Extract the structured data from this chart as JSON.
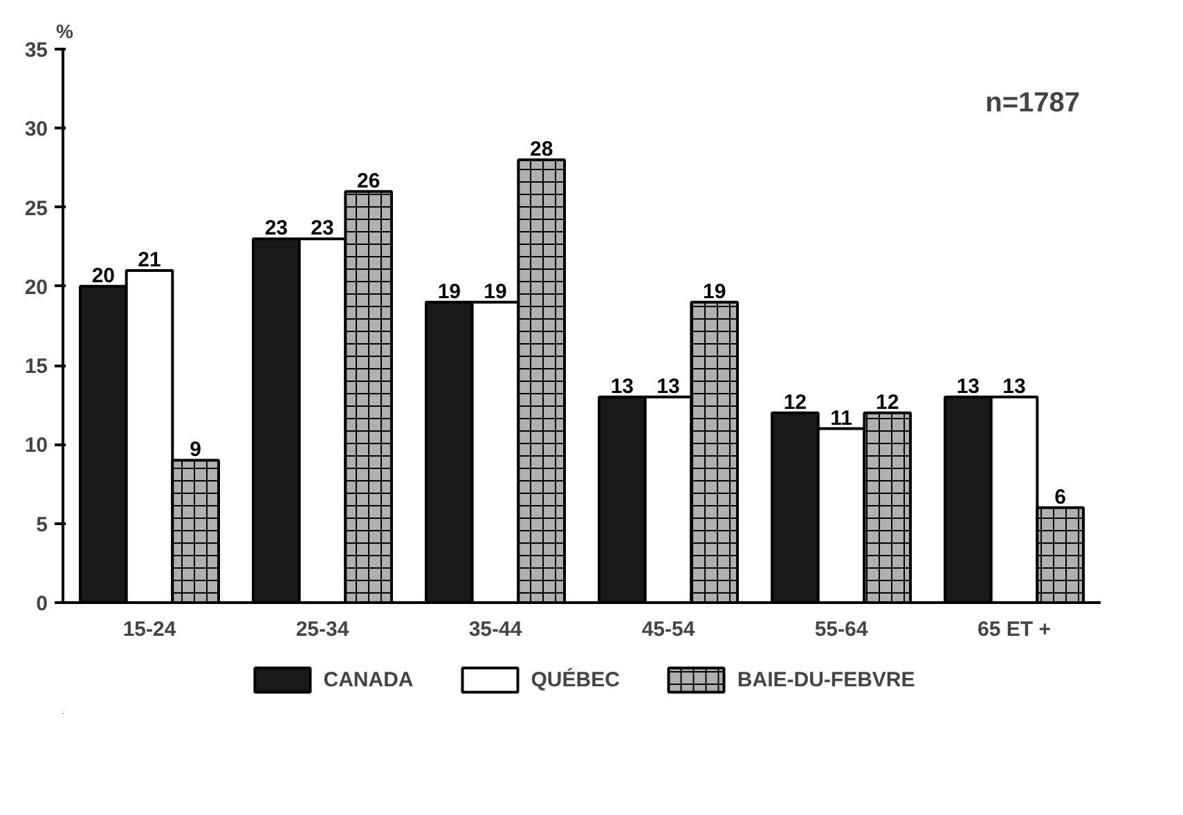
{
  "chart_data": {
    "type": "bar",
    "ylabel": "%",
    "categories": [
      "15-24",
      "25-34",
      "35-44",
      "45-54",
      "55-64",
      "65 ET +"
    ],
    "series": [
      {
        "name": "CANADA",
        "color": "#1a1a1a",
        "values": [
          20,
          23,
          19,
          13,
          12,
          13
        ]
      },
      {
        "name": "QUÉBEC",
        "color": "#ffffff",
        "values": [
          21,
          23,
          19,
          13,
          11,
          13
        ]
      },
      {
        "name": "BAIE-DU-FEBVRE",
        "color": "#b0b0b0",
        "values": [
          9,
          26,
          28,
          19,
          12,
          6
        ]
      }
    ],
    "ylim": [
      0,
      35
    ],
    "yticks": [
      0,
      5,
      10,
      15,
      20,
      25,
      30,
      35
    ],
    "data_labels": true,
    "grid": false,
    "legend": "bottom",
    "annotations": [
      "n=1787"
    ]
  }
}
